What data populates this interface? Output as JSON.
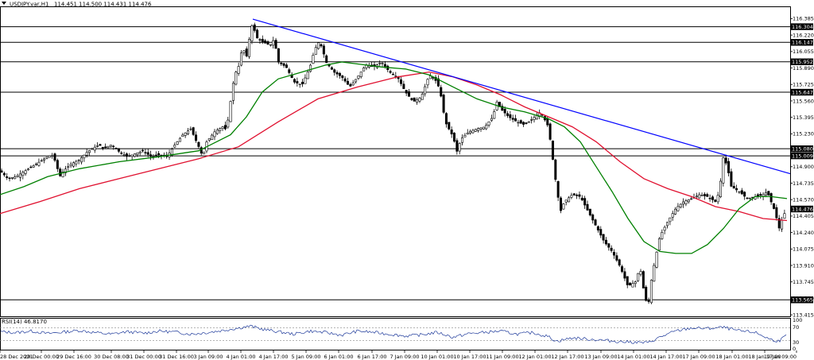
{
  "header": {
    "symbol": "USDJPY.var,H1",
    "ohlc": "114.451 114.500 114.431 114.476"
  },
  "rsi_panel": {
    "label": "RSI(14) 46.8170",
    "levels": [
      "100",
      "70",
      "30",
      "0"
    ]
  },
  "colors": {
    "trendline": "#0000ff",
    "ma_fast": "#008000",
    "ma_slow": "#e0102f",
    "candles": "#000000",
    "horizontal_levels": "#000000",
    "rsi": "#1e3a9b",
    "price_tag": "#000000"
  },
  "chart_data": {
    "type": "candlestick",
    "symbol": "USDJPY.var",
    "timeframe": "H1",
    "ylim": [
      113.4,
      116.5
    ],
    "y_ticks": [
      "116.385",
      "116.220",
      "116.055",
      "115.890",
      "115.725",
      "115.560",
      "115.395",
      "115.230",
      "115.065",
      "114.900",
      "114.735",
      "114.570",
      "114.405",
      "114.240",
      "114.075",
      "113.910",
      "113.745",
      "113.580",
      "113.415"
    ],
    "x_ticks": [
      "28 Dec 2021",
      "29 Dec 00:00",
      "29 Dec 16:00",
      "30 Dec 08:00",
      "31 Dec 00:00",
      "31 Dec 16:00",
      "3 Jan 09:00",
      "4 Jan 01:00",
      "4 Jan 17:00",
      "5 Jan 09:00",
      "6 Jan 01:00",
      "6 Jan 17:00",
      "7 Jan 09:00",
      "10 Jan 01:00",
      "10 Jan 17:00",
      "11 Jan 09:00",
      "12 Jan 01:00",
      "12 Jan 17:00",
      "13 Jan 09:00",
      "14 Jan 01:00",
      "14 Jan 17:00",
      "17 Jan 09:00",
      "18 Jan 01:00",
      "18 Jan 17:00",
      "19 Jan 09:00"
    ],
    "horizontal_levels": [
      "116.304",
      "116.147",
      "115.952",
      "115.647",
      "115.080",
      "115.009",
      "113.565"
    ],
    "current_price": "114.476",
    "trendline": {
      "start_price": 116.38,
      "end_price": 114.83
    },
    "close_path": [
      [
        0,
        114.86
      ],
      [
        10,
        114.78
      ],
      [
        20,
        114.8
      ],
      [
        30,
        114.85
      ],
      [
        40,
        114.9
      ],
      [
        50,
        114.95
      ],
      [
        60,
        115.0
      ],
      [
        65,
        115.02
      ],
      [
        70,
        114.95
      ],
      [
        75,
        114.8
      ],
      [
        80,
        114.86
      ],
      [
        90,
        114.93
      ],
      [
        100,
        114.97
      ],
      [
        110,
        115.05
      ],
      [
        120,
        115.1
      ],
      [
        125,
        115.12
      ],
      [
        130,
        115.08
      ],
      [
        140,
        115.12
      ],
      [
        150,
        115.05
      ],
      [
        160,
        115.0
      ],
      [
        170,
        115.03
      ],
      [
        180,
        115.06
      ],
      [
        190,
        115.0
      ],
      [
        200,
        115.02
      ],
      [
        210,
        115.0
      ],
      [
        220,
        115.12
      ],
      [
        230,
        115.22
      ],
      [
        240,
        115.28
      ],
      [
        250,
        115.1
      ],
      [
        255,
        115.0
      ],
      [
        260,
        115.15
      ],
      [
        270,
        115.25
      ],
      [
        280,
        115.3
      ],
      [
        285,
        115.27
      ],
      [
        290,
        115.55
      ],
      [
        295,
        115.82
      ],
      [
        300,
        115.9
      ],
      [
        305,
        116.1
      ],
      [
        310,
        116.0
      ],
      [
        315,
        116.25
      ],
      [
        318,
        116.35
      ],
      [
        322,
        116.2
      ],
      [
        330,
        116.15
      ],
      [
        340,
        116.12
      ],
      [
        345,
        116.18
      ],
      [
        350,
        115.95
      ],
      [
        360,
        115.9
      ],
      [
        370,
        115.75
      ],
      [
        380,
        115.72
      ],
      [
        390,
        115.9
      ],
      [
        395,
        116.05
      ],
      [
        400,
        116.15
      ],
      [
        405,
        116.1
      ],
      [
        410,
        115.95
      ],
      [
        420,
        115.85
      ],
      [
        430,
        115.8
      ],
      [
        440,
        115.7
      ],
      [
        450,
        115.8
      ],
      [
        460,
        115.92
      ],
      [
        470,
        115.9
      ],
      [
        480,
        115.95
      ],
      [
        490,
        115.85
      ],
      [
        500,
        115.8
      ],
      [
        510,
        115.65
      ],
      [
        520,
        115.55
      ],
      [
        530,
        115.6
      ],
      [
        540,
        115.82
      ],
      [
        550,
        115.75
      ],
      [
        555,
        115.6
      ],
      [
        560,
        115.35
      ],
      [
        570,
        115.2
      ],
      [
        575,
        115.05
      ],
      [
        580,
        115.18
      ],
      [
        590,
        115.25
      ],
      [
        600,
        115.28
      ],
      [
        610,
        115.3
      ],
      [
        620,
        115.4
      ],
      [
        625,
        115.55
      ],
      [
        630,
        115.48
      ],
      [
        640,
        115.4
      ],
      [
        650,
        115.35
      ],
      [
        660,
        115.32
      ],
      [
        670,
        115.38
      ],
      [
        680,
        115.45
      ],
      [
        690,
        115.3
      ],
      [
        695,
        115.0
      ],
      [
        700,
        114.7
      ],
      [
        705,
        114.45
      ],
      [
        710,
        114.55
      ],
      [
        720,
        114.62
      ],
      [
        730,
        114.6
      ],
      [
        740,
        114.45
      ],
      [
        750,
        114.3
      ],
      [
        760,
        114.15
      ],
      [
        770,
        114.05
      ],
      [
        780,
        113.9
      ],
      [
        790,
        113.7
      ],
      [
        800,
        113.75
      ],
      [
        805,
        113.9
      ],
      [
        810,
        113.65
      ],
      [
        815,
        113.48
      ],
      [
        820,
        113.8
      ],
      [
        825,
        114.0
      ],
      [
        830,
        114.2
      ],
      [
        840,
        114.35
      ],
      [
        850,
        114.48
      ],
      [
        860,
        114.55
      ],
      [
        870,
        114.58
      ],
      [
        880,
        114.62
      ],
      [
        890,
        114.6
      ],
      [
        900,
        114.55
      ],
      [
        905,
        114.65
      ],
      [
        910,
        115.0
      ],
      [
        915,
        114.9
      ],
      [
        920,
        114.7
      ],
      [
        930,
        114.65
      ],
      [
        940,
        114.58
      ],
      [
        950,
        114.6
      ],
      [
        960,
        114.62
      ],
      [
        965,
        114.65
      ],
      [
        970,
        114.55
      ],
      [
        975,
        114.45
      ],
      [
        980,
        114.28
      ],
      [
        985,
        114.4
      ],
      [
        990,
        114.48
      ]
    ],
    "ma_fast_path": [
      [
        0,
        114.62
      ],
      [
        30,
        114.7
      ],
      [
        60,
        114.8
      ],
      [
        100,
        114.88
      ],
      [
        150,
        114.95
      ],
      [
        200,
        115.0
      ],
      [
        250,
        115.06
      ],
      [
        290,
        115.22
      ],
      [
        310,
        115.4
      ],
      [
        330,
        115.65
      ],
      [
        350,
        115.78
      ],
      [
        380,
        115.85
      ],
      [
        410,
        115.92
      ],
      [
        430,
        115.95
      ],
      [
        450,
        115.93
      ],
      [
        480,
        115.9
      ],
      [
        510,
        115.88
      ],
      [
        540,
        115.82
      ],
      [
        570,
        115.7
      ],
      [
        600,
        115.58
      ],
      [
        630,
        115.5
      ],
      [
        660,
        115.45
      ],
      [
        690,
        115.38
      ],
      [
        710,
        115.3
      ],
      [
        730,
        115.15
      ],
      [
        750,
        114.9
      ],
      [
        770,
        114.65
      ],
      [
        790,
        114.38
      ],
      [
        810,
        114.15
      ],
      [
        830,
        114.05
      ],
      [
        850,
        114.03
      ],
      [
        870,
        114.03
      ],
      [
        890,
        114.12
      ],
      [
        910,
        114.28
      ],
      [
        930,
        114.48
      ],
      [
        950,
        114.6
      ],
      [
        970,
        114.6
      ],
      [
        990,
        114.58
      ]
    ],
    "ma_slow_path": [
      [
        0,
        114.43
      ],
      [
        50,
        114.55
      ],
      [
        100,
        114.68
      ],
      [
        150,
        114.78
      ],
      [
        200,
        114.88
      ],
      [
        250,
        114.98
      ],
      [
        300,
        115.1
      ],
      [
        350,
        115.35
      ],
      [
        400,
        115.58
      ],
      [
        450,
        115.7
      ],
      [
        500,
        115.8
      ],
      [
        540,
        115.85
      ],
      [
        570,
        115.8
      ],
      [
        600,
        115.72
      ],
      [
        630,
        115.62
      ],
      [
        660,
        115.5
      ],
      [
        690,
        115.4
      ],
      [
        720,
        115.3
      ],
      [
        750,
        115.15
      ],
      [
        780,
        114.95
      ],
      [
        810,
        114.78
      ],
      [
        840,
        114.68
      ],
      [
        870,
        114.6
      ],
      [
        900,
        114.5
      ],
      [
        930,
        114.45
      ],
      [
        960,
        114.38
      ],
      [
        990,
        114.36
      ]
    ],
    "rsi_path": [
      [
        0,
        58
      ],
      [
        20,
        55
      ],
      [
        40,
        60
      ],
      [
        60,
        52
      ],
      [
        80,
        57
      ],
      [
        100,
        62
      ],
      [
        120,
        55
      ],
      [
        140,
        50
      ],
      [
        160,
        58
      ],
      [
        180,
        53
      ],
      [
        200,
        60
      ],
      [
        220,
        57
      ],
      [
        240,
        50
      ],
      [
        260,
        55
      ],
      [
        280,
        62
      ],
      [
        300,
        70
      ],
      [
        315,
        76
      ],
      [
        330,
        66
      ],
      [
        350,
        58
      ],
      [
        370,
        50
      ],
      [
        390,
        60
      ],
      [
        410,
        55
      ],
      [
        430,
        47
      ],
      [
        450,
        60
      ],
      [
        470,
        56
      ],
      [
        490,
        50
      ],
      [
        510,
        44
      ],
      [
        530,
        48
      ],
      [
        550,
        56
      ],
      [
        570,
        40
      ],
      [
        590,
        52
      ],
      [
        610,
        56
      ],
      [
        630,
        60
      ],
      [
        650,
        50
      ],
      [
        670,
        55
      ],
      [
        690,
        42
      ],
      [
        700,
        27
      ],
      [
        720,
        38
      ],
      [
        740,
        34
      ],
      [
        760,
        30
      ],
      [
        780,
        26
      ],
      [
        800,
        24
      ],
      [
        815,
        22
      ],
      [
        830,
        40
      ],
      [
        850,
        60
      ],
      [
        870,
        70
      ],
      [
        890,
        68
      ],
      [
        910,
        72
      ],
      [
        930,
        60
      ],
      [
        950,
        56
      ],
      [
        970,
        32
      ],
      [
        980,
        28
      ],
      [
        990,
        47
      ]
    ]
  }
}
